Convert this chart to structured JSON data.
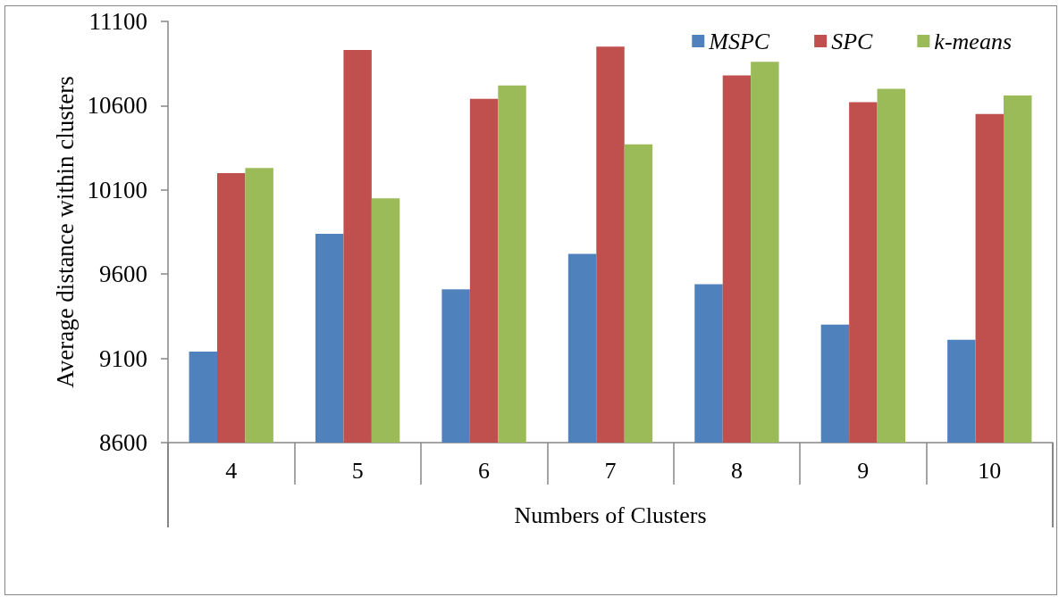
{
  "chart_data": {
    "type": "bar",
    "xlabel": "Numbers of Clusters",
    "ylabel": "Average distance within clusters",
    "categories": [
      "4",
      "5",
      "6",
      "7",
      "8",
      "9",
      "10"
    ],
    "series": [
      {
        "name": "MSPC",
        "color": "#4f81bd",
        "values": [
          9140,
          9840,
          9510,
          9720,
          9540,
          9300,
          9210
        ]
      },
      {
        "name": "SPC",
        "color": "#c0504d",
        "values": [
          10200,
          10930,
          10640,
          10950,
          10780,
          10620,
          10550
        ]
      },
      {
        "name": "k-means",
        "color": "#9bbb59",
        "values": [
          10230,
          10050,
          10720,
          10370,
          10860,
          10700,
          10660
        ]
      }
    ],
    "ylim": [
      8600,
      11100
    ],
    "yticks": [
      8600,
      9100,
      9600,
      10100,
      10600,
      11100
    ],
    "grid": false,
    "legend": "top right"
  }
}
